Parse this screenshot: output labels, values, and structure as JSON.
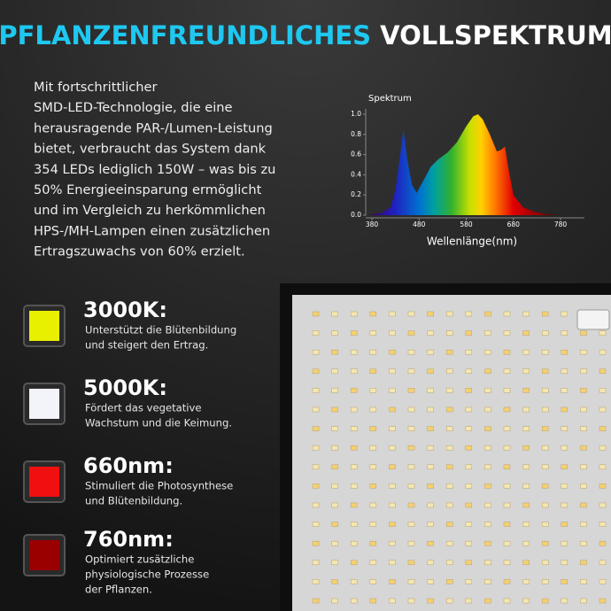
{
  "header": {
    "title_part1": "PFLANZENFREUNDLICHES",
    "title_part2": "VOLLSPEKTRUM"
  },
  "description": {
    "lines": [
      "Mit fortschrittlicher",
      "SMD-LED-Technologie, die eine",
      "herausragende PAR-/Lumen-Leistung",
      "bietet, verbraucht das System dank",
      "354 LEDs lediglich 150W – was bis zu",
      "50% Energieeinsparung ermöglicht",
      "und im Vergleich zu herkömmlichen",
      "HPS-/MH-Lampen einen zusätzlichen",
      "Ertragszuwachs von 60% erzielt."
    ]
  },
  "spectrum_chart": {
    "type": "area",
    "title": "Spektrum",
    "x_label": "Wellenlänge(nm)",
    "x": [
      380,
      400,
      420,
      430,
      440,
      447,
      455,
      465,
      475,
      490,
      505,
      520,
      540,
      560,
      580,
      595,
      605,
      615,
      630,
      645,
      655,
      662,
      670,
      680,
      700,
      720,
      750,
      780
    ],
    "values": [
      0.01,
      0.02,
      0.08,
      0.25,
      0.6,
      0.85,
      0.55,
      0.3,
      0.22,
      0.35,
      0.48,
      0.55,
      0.62,
      0.72,
      0.88,
      0.98,
      1.0,
      0.95,
      0.8,
      0.63,
      0.65,
      0.68,
      0.45,
      0.2,
      0.08,
      0.04,
      0.01,
      0
    ],
    "xlim": [
      380,
      780
    ],
    "xticks": [
      380,
      480,
      580,
      680,
      780
    ],
    "ylim": [
      0,
      1
    ],
    "yticks": [
      {
        "value": 0,
        "label": "0.0"
      },
      0.2,
      0.4,
      0.6,
      0.8,
      {
        "value": 1,
        "label": "1.0"
      }
    ]
  },
  "features": [
    {
      "title": "3000K:",
      "color": "#e8f000",
      "lines": [
        "Unterstützt die Blütenbildung",
        "und steigert den Ertrag."
      ]
    },
    {
      "title": "5000K:",
      "color": "#f2f4fa",
      "lines": [
        "Fördert das vegetative",
        "Wachstum und die Keimung."
      ]
    },
    {
      "title": "660nm:",
      "color": "#f01010",
      "lines": [
        "Stimuliert die Photosynthese",
        "und Blütenbildung."
      ]
    },
    {
      "title": "760nm:",
      "color": "#9a0000",
      "lines": [
        "Optimiert zusätzliche",
        "physiologische Prozesse",
        "der Pflanzen."
      ]
    }
  ]
}
